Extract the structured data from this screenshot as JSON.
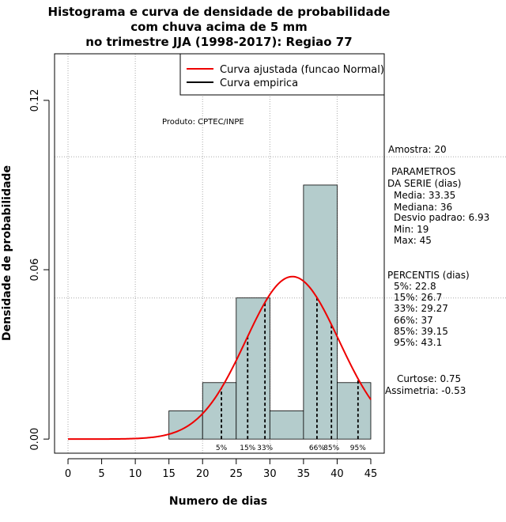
{
  "chart_data": {
    "type": "histogram",
    "title": [
      "Histograma e curva de densidade de probabilidade",
      "com chuva acima de 5 mm",
      "no trimestre JJA (1998-2017): Regiao 77"
    ],
    "xlabel": "Numero de dias",
    "ylabel": "Densidade de probabilidade",
    "xlim": [
      -2,
      47
    ],
    "ylim": [
      -0.005,
      0.1365
    ],
    "x_ticks": [
      0,
      5,
      10,
      15,
      20,
      25,
      30,
      35,
      40,
      45
    ],
    "y_ticks": [
      0.0,
      0.06,
      0.12
    ],
    "y_tick_labels": [
      "0.00",
      "0.06",
      "0.12"
    ],
    "gridlines_x": [
      0,
      10,
      20,
      30,
      40
    ],
    "gridlines_y": [
      0.05,
      0.1
    ],
    "bins": [
      {
        "from": 15,
        "to": 20,
        "density": 0.01
      },
      {
        "from": 20,
        "to": 25,
        "density": 0.02
      },
      {
        "from": 25,
        "to": 30,
        "density": 0.05
      },
      {
        "from": 30,
        "to": 35,
        "density": 0.01
      },
      {
        "from": 35,
        "to": 40,
        "density": 0.09
      },
      {
        "from": 40,
        "to": 45,
        "density": 0.02
      }
    ],
    "fitted_curve": {
      "distribution": "normal",
      "mean": 33.35,
      "sd": 6.93,
      "from": 0,
      "to": 45
    },
    "percentile_lines": [
      {
        "label": "5%",
        "x": 22.8
      },
      {
        "label": "15%",
        "x": 26.7
      },
      {
        "label": "33%",
        "x": 29.27
      },
      {
        "label": "66%",
        "x": 37
      },
      {
        "label": "85%",
        "x": 39.15
      },
      {
        "label": "95%",
        "x": 43.1
      }
    ],
    "legend": [
      {
        "label": "Curva ajustada (funcao Normal)",
        "color": "#ee0000"
      },
      {
        "label": "Curva empirica",
        "color": "#000000"
      }
    ],
    "legend_position": "top-right",
    "annotation": "Produto: CPTEC/INPE",
    "colors": {
      "bar_fill": "#b4cccc",
      "curve": "#ee0000",
      "grid": "#aaaaaa"
    }
  },
  "side_panel": {
    "sample": "Amostra: 20",
    "params_title_1": "PARAMETROS",
    "params_title_2": "DA SERIE (dias)",
    "media": "Media: 33.35",
    "mediana": "Mediana: 36",
    "desvio": "Desvio padrao: 6.93",
    "min": "Min: 19",
    "max": "Max: 45",
    "pct_title": "PERCENTIS (dias)",
    "p5": "5%: 22.8",
    "p15": "15%: 26.7",
    "p33": "33%: 29.27",
    "p66": "66%: 37",
    "p85": "85%: 39.15",
    "p95": "95%: 43.1",
    "curtose": "Curtose: 0.75",
    "assimetria": "Assimetria: -0.53"
  }
}
